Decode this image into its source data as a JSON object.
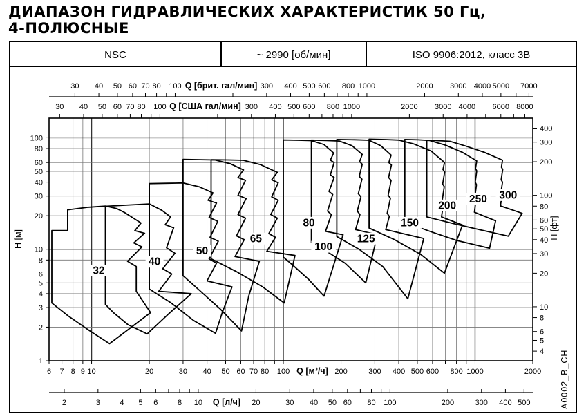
{
  "title": {
    "line1": "ДИАПАЗОН ГИДРАВЛИЧЕСКИХ ХАРАКТЕРИСТИК 50 Гц,",
    "line2": "4-ПОЛЮСНЫЕ"
  },
  "header": {
    "series": "NSC",
    "speed": "~ 2990 [об/мин]",
    "standard": "ISO 9906:2012, класс 3В"
  },
  "watermark": "A0002_B_CH",
  "chart_data": {
    "type": "area",
    "description": "Log-log mosaic of pump size coverage regions, flow Q vs head H",
    "x_domain_m3h": [
      6,
      2000
    ],
    "y_domain_m": [
      1,
      150
    ],
    "grid": {
      "q_lines": [
        7,
        8,
        9,
        10,
        20,
        30,
        40,
        50,
        60,
        70,
        80,
        90,
        100,
        200,
        300,
        400,
        500,
        600,
        700,
        800,
        900,
        1000
      ],
      "q_thick": [
        10,
        100,
        1000
      ],
      "h_lines": [
        2,
        3,
        4,
        5,
        6,
        8,
        10,
        20,
        30,
        40,
        50,
        60,
        80,
        100
      ],
      "h_thick": [
        10,
        100
      ]
    },
    "axes": {
      "imp": {
        "title": "Q [брит. гал/мин]",
        "to_m3h": 0.272765,
        "ticks": [
          30,
          40,
          50,
          60,
          70,
          80,
          90,
          100,
          200,
          300,
          400,
          500,
          600,
          700,
          800,
          900,
          1000,
          2000,
          3000,
          4000,
          5000,
          6000,
          7000
        ],
        "labels": [
          30,
          40,
          50,
          60,
          70,
          80,
          100,
          300,
          400,
          500,
          600,
          800,
          1000,
          2000,
          3000,
          4000,
          5000,
          7000
        ]
      },
      "usa": {
        "title": "Q [США гал/мин]",
        "to_m3h": 0.227125,
        "ticks": [
          30,
          40,
          50,
          60,
          70,
          80,
          90,
          100,
          200,
          300,
          400,
          500,
          600,
          700,
          800,
          900,
          1000,
          2000,
          3000,
          4000,
          5000,
          6000,
          7000,
          8000
        ],
        "labels": [
          30,
          40,
          50,
          60,
          70,
          80,
          100,
          300,
          400,
          500,
          600,
          800,
          1000,
          2000,
          3000,
          4000,
          6000,
          8000
        ]
      },
      "m3h": {
        "title": "Q [м³/ч]",
        "to_m3h": 1,
        "ticks": [
          6,
          7,
          8,
          9,
          10,
          20,
          30,
          40,
          50,
          60,
          70,
          80,
          90,
          100,
          200,
          300,
          400,
          500,
          600,
          700,
          800,
          900,
          1000,
          2000
        ],
        "labels": [
          6,
          7,
          8,
          9,
          10,
          20,
          30,
          40,
          50,
          60,
          70,
          80,
          100,
          200,
          300,
          400,
          500,
          600,
          800,
          1000,
          2000
        ]
      },
      "ls": {
        "title": "Q [л/ч]",
        "to_m3h": 3.6,
        "ticks": [
          2,
          3,
          4,
          5,
          6,
          7,
          8,
          9,
          10,
          20,
          30,
          40,
          50,
          60,
          70,
          80,
          90,
          100,
          200,
          300,
          400,
          500
        ],
        "labels": [
          2,
          3,
          4,
          5,
          6,
          8,
          10,
          20,
          30,
          40,
          50,
          60,
          80,
          100,
          200,
          300,
          400,
          500
        ]
      },
      "hm": {
        "title": "H [м]",
        "labels": [
          1,
          2,
          3,
          4,
          5,
          6,
          8,
          10,
          20,
          30,
          40,
          50,
          60,
          80,
          100
        ]
      },
      "hft": {
        "title": "H [фт]",
        "per_m": 3.2808,
        "labels": [
          4,
          5,
          6,
          8,
          10,
          20,
          30,
          40,
          50,
          60,
          80,
          100,
          200,
          300,
          400
        ]
      }
    },
    "regions": [
      {
        "label": "32",
        "label_at": [
          10.9,
          6.0
        ],
        "points": [
          [
            6.2,
            3.3
          ],
          [
            6.2,
            14.7
          ],
          [
            7.5,
            14.7
          ],
          [
            7.5,
            22.6
          ],
          [
            9.5,
            23.8
          ],
          [
            11.9,
            24.4
          ],
          [
            13.5,
            23.2
          ],
          [
            14.9,
            21.3
          ],
          [
            18.1,
            17.2
          ],
          [
            16.8,
            14.7
          ],
          [
            18.9,
            13.9
          ],
          [
            16.6,
            11.4
          ],
          [
            18.3,
            10.5
          ],
          [
            15.4,
            7.8
          ],
          [
            17.1,
            7.0
          ],
          [
            17.1,
            4.2
          ],
          [
            20.3,
            2.7
          ],
          [
            15.5,
            1.9
          ],
          [
            12.4,
            1.42
          ],
          [
            9.8,
            1.85
          ],
          [
            7.6,
            2.5
          ]
        ]
      },
      {
        "label": "40",
        "label_at": [
          21.3,
          7.2
        ],
        "points": [
          [
            11.8,
            3.2
          ],
          [
            11.8,
            24.3
          ],
          [
            16,
            25.0
          ],
          [
            20,
            25.5
          ],
          [
            23.2,
            22.4
          ],
          [
            25.8,
            19.5
          ],
          [
            24.2,
            16.6
          ],
          [
            26.8,
            15.6
          ],
          [
            24.6,
            10.3
          ],
          [
            27.2,
            9.2
          ],
          [
            23.5,
            6.7
          ],
          [
            26.2,
            6.0
          ],
          [
            22.4,
            4.2
          ],
          [
            33.1,
            4.0
          ],
          [
            25,
            2.6
          ],
          [
            19.5,
            1.74
          ],
          [
            15.5,
            2.1
          ],
          [
            13,
            2.7
          ]
        ]
      },
      {
        "label": "50",
        "label_at": [
          37.7,
          9.0
        ],
        "points": [
          [
            20,
            4.4
          ],
          [
            20,
            38.8
          ],
          [
            25,
            39.1
          ],
          [
            30,
            39.3
          ],
          [
            36.5,
            36.3
          ],
          [
            43,
            32
          ],
          [
            40.5,
            27.5
          ],
          [
            44.8,
            26
          ],
          [
            41,
            19.3
          ],
          [
            45.5,
            17.8
          ],
          [
            41.5,
            12.8
          ],
          [
            45.8,
            11.8
          ],
          [
            41,
            8.2
          ],
          [
            44.8,
            7.5
          ],
          [
            40,
            5.2
          ],
          [
            54,
            4.6
          ],
          [
            48,
            2.7
          ],
          [
            44.3,
            1.76
          ],
          [
            34,
            2.3
          ],
          [
            26,
            3.3
          ]
        ]
      },
      {
        "label": "65",
        "label_at": [
          72,
          11.6
        ],
        "points": [
          [
            30,
            5.8
          ],
          [
            30,
            64
          ],
          [
            37,
            63.6
          ],
          [
            44,
            63.2
          ],
          [
            53,
            58.5
          ],
          [
            62,
            51.5
          ],
          [
            58,
            44
          ],
          [
            63.5,
            41.5
          ],
          [
            58,
            30.5
          ],
          [
            64,
            28.5
          ],
          [
            58,
            20.5
          ],
          [
            63.5,
            19
          ],
          [
            57,
            13.2
          ],
          [
            62.5,
            12.2
          ],
          [
            56,
            8.6
          ],
          [
            75,
            7.8
          ],
          [
            66,
            3.8
          ],
          [
            60.5,
            1.85
          ],
          [
            47,
            2.9
          ],
          [
            37,
            4.2
          ]
        ]
      },
      {
        "label": "80",
        "label_at": [
          136,
          16.1
        ],
        "points": [
          [
            42,
            8.2
          ],
          [
            42,
            63.5
          ],
          [
            52,
            63.2
          ],
          [
            62,
            62.8
          ],
          [
            76,
            57.5
          ],
          [
            93,
            49
          ],
          [
            87,
            42
          ],
          [
            94,
            39.5
          ],
          [
            87,
            29.5
          ],
          [
            94,
            27.5
          ],
          [
            86,
            20.5
          ],
          [
            93,
            19
          ],
          [
            84,
            13.8
          ],
          [
            91,
            12.8
          ],
          [
            82,
            9.6
          ],
          [
            115,
            8.8
          ],
          [
            101,
            3.3
          ],
          [
            78,
            4.6
          ],
          [
            57,
            6.3
          ]
        ]
      },
      {
        "label": "100",
        "label_at": [
          162,
          9.8
        ],
        "points": [
          [
            100,
            8.5
          ],
          [
            100,
            95.5
          ],
          [
            120,
            95
          ],
          [
            140,
            94.3
          ],
          [
            163,
            87
          ],
          [
            183,
            73
          ],
          [
            176,
            63
          ],
          [
            184,
            60
          ],
          [
            176,
            46.5
          ],
          [
            184,
            44
          ],
          [
            173,
            33
          ],
          [
            181,
            31
          ],
          [
            170,
            22
          ],
          [
            178,
            20.5
          ],
          [
            166,
            14.5
          ],
          [
            205,
            13.5
          ],
          [
            163,
            3.8
          ],
          [
            135,
            5.4
          ],
          [
            112,
            7.2
          ]
        ]
      },
      {
        "label": "125",
        "label_at": [
          270,
          11.6
        ],
        "points": [
          [
            140,
            11.5
          ],
          [
            140,
            95.2
          ],
          [
            168,
            94.6
          ],
          [
            196,
            93.5
          ],
          [
            228,
            85
          ],
          [
            258,
            71
          ],
          [
            250,
            61
          ],
          [
            258,
            58
          ],
          [
            249,
            45
          ],
          [
            257,
            42.5
          ],
          [
            246,
            31.5
          ],
          [
            254,
            29.5
          ],
          [
            243,
            22
          ],
          [
            251,
            20.5
          ],
          [
            238,
            15
          ],
          [
            310,
            13.5
          ],
          [
            269,
            5.0
          ],
          [
            210,
            7.5
          ],
          [
            168,
            9.6
          ]
        ]
      },
      {
        "label": "150",
        "label_at": [
          457,
          16.1
        ],
        "points": [
          [
            190,
            13
          ],
          [
            190,
            96.5
          ],
          [
            235,
            96
          ],
          [
            280,
            95
          ],
          [
            322,
            85
          ],
          [
            365,
            70
          ],
          [
            355,
            60
          ],
          [
            366,
            57
          ],
          [
            354,
            44
          ],
          [
            365,
            41.5
          ],
          [
            352,
            30.5
          ],
          [
            362,
            28.7
          ],
          [
            348,
            21
          ],
          [
            357,
            19.7
          ],
          [
            342,
            15
          ],
          [
            540,
            12.5
          ],
          [
            446,
            3.6
          ],
          [
            330,
            7
          ],
          [
            248,
            10
          ]
        ]
      },
      {
        "label": "200",
        "label_at": [
          716,
          23
        ],
        "points": [
          [
            280,
            15.5
          ],
          [
            280,
            97
          ],
          [
            340,
            96.3
          ],
          [
            400,
            95.3
          ],
          [
            480,
            88
          ],
          [
            590,
            76
          ],
          [
            693,
            60
          ],
          [
            680,
            52
          ],
          [
            694,
            49.5
          ],
          [
            678,
            38.5
          ],
          [
            691,
            36.5
          ],
          [
            675,
            28
          ],
          [
            687,
            26.5
          ],
          [
            668,
            19.5
          ],
          [
            860,
            16.5
          ],
          [
            692,
            6.1
          ],
          [
            520,
            9
          ],
          [
            380,
            12.2
          ]
        ]
      },
      {
        "label": "250",
        "label_at": [
          1038,
          26.2
        ],
        "points": [
          [
            430,
            17.5
          ],
          [
            430,
            96.5
          ],
          [
            505,
            95.8
          ],
          [
            580,
            94.5
          ],
          [
            700,
            86
          ],
          [
            860,
            74
          ],
          [
            1020,
            62
          ],
          [
            1005,
            53
          ],
          [
            1020,
            50.5
          ],
          [
            1002,
            40
          ],
          [
            1017,
            38
          ],
          [
            998,
            29.5
          ],
          [
            1012,
            28
          ],
          [
            992,
            21.5
          ],
          [
            1280,
            18
          ],
          [
            1190,
            10.2
          ],
          [
            800,
            12
          ],
          [
            580,
            14.5
          ]
        ]
      },
      {
        "label": "300",
        "label_at": [
          1487,
          28.5
        ],
        "points": [
          [
            560,
            19.5
          ],
          [
            560,
            95
          ],
          [
            650,
            94.2
          ],
          [
            740,
            93
          ],
          [
            890,
            84.5
          ],
          [
            1120,
            74
          ],
          [
            1390,
            63
          ],
          [
            1372,
            54.5
          ],
          [
            1394,
            52
          ],
          [
            1368,
            42
          ],
          [
            1390,
            40
          ],
          [
            1362,
            32
          ],
          [
            1382,
            30.3
          ],
          [
            1355,
            24.5
          ],
          [
            1760,
            21
          ],
          [
            1490,
            13.1
          ],
          [
            1050,
            15
          ],
          [
            770,
            17
          ]
        ]
      }
    ]
  }
}
